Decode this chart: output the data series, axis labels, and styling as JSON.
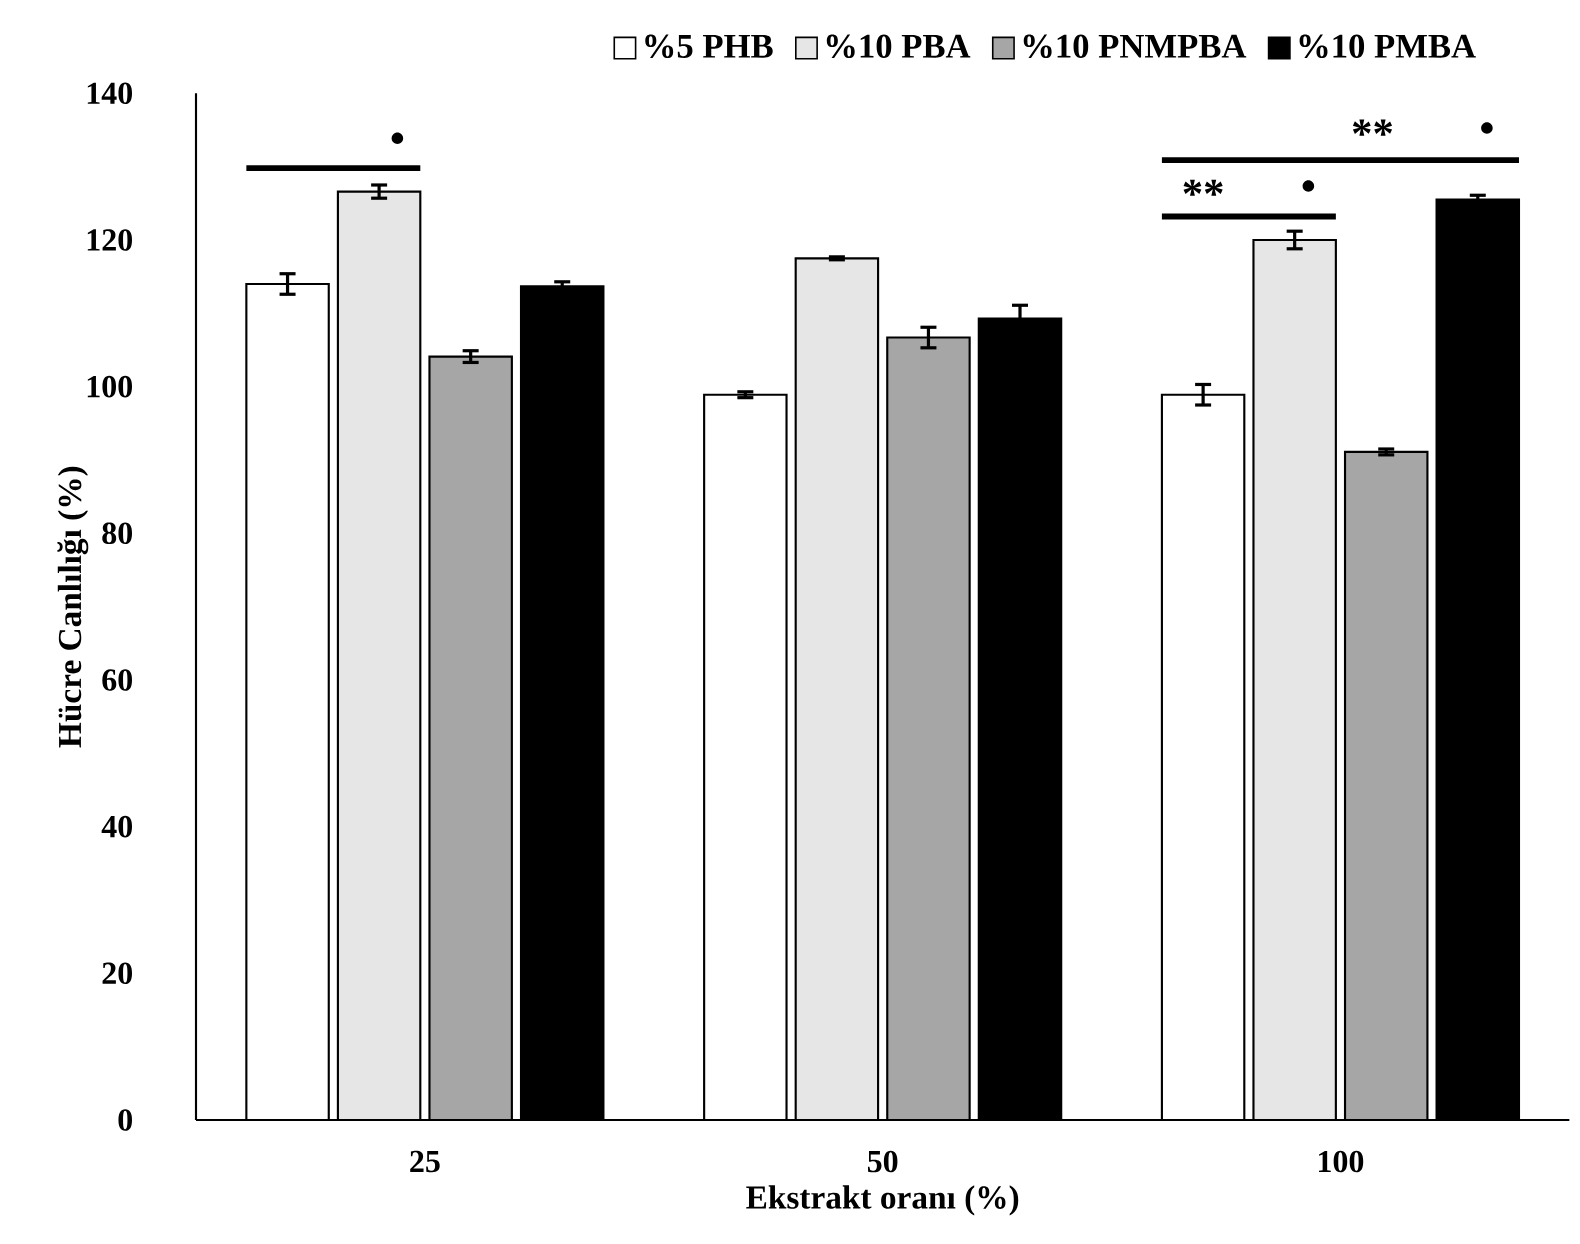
{
  "chart_data": {
    "type": "bar",
    "xlabel": "Ekstrakt oranı (%)",
    "ylabel": "Hücre Canlılığı (%)",
    "categories": [
      "25",
      "50",
      "100"
    ],
    "series": [
      {
        "name": "%5 PHB",
        "color": "#ffffff",
        "values": [
          114.0,
          98.9,
          98.9
        ],
        "errors": [
          1.4,
          0.4,
          1.4
        ]
      },
      {
        "name": "%10 PBA",
        "color": "#e6e6e6",
        "values": [
          126.6,
          117.5,
          120.0
        ],
        "errors": [
          0.9,
          0.2,
          1.2
        ]
      },
      {
        "name": "%10 PNMPBA",
        "color": "#a6a6a6",
        "values": [
          104.1,
          106.7,
          91.1
        ],
        "errors": [
          0.8,
          1.4,
          0.4
        ]
      },
      {
        "name": "%10 PMBA",
        "color": "#000000",
        "values": [
          113.7,
          109.3,
          125.5
        ],
        "errors": [
          0.6,
          1.8,
          0.6
        ]
      }
    ],
    "ylim": [
      0,
      140
    ],
    "yticks": [
      0,
      20,
      40,
      60,
      80,
      100,
      120,
      140
    ],
    "legend": "top",
    "annotations": [
      "•",
      "**",
      "•",
      "**",
      "•"
    ]
  }
}
